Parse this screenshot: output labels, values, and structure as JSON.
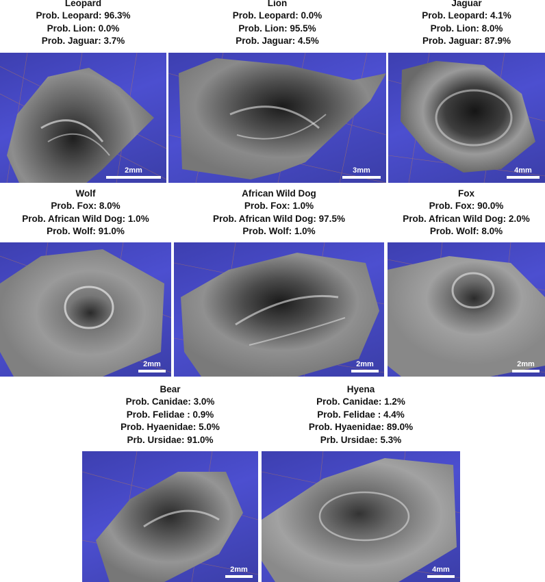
{
  "panels": [
    {
      "title": "Leopard",
      "lines": [
        "Prob. Leopard: 96.3%",
        "Prob. Lion: 0.0%",
        "Prob. Jaguar: 3.7%"
      ],
      "scale": "2mm"
    },
    {
      "title": "Lion",
      "lines": [
        "Prob. Leopard: 0.0%",
        "Prob. Lion: 95.5%",
        "Prob. Jaguar: 4.5%"
      ],
      "scale": "3mm"
    },
    {
      "title": "Jaguar",
      "lines": [
        "Prob. Leopard: 4.1%",
        "Prob. Lion: 8.0%",
        "Prob. Jaguar: 87.9%"
      ],
      "scale": "4mm"
    },
    {
      "title": "Wolf",
      "lines": [
        "Prob. Fox: 8.0%",
        "Prob. African Wild Dog: 1.0%",
        "Prob. Wolf: 91.0%"
      ],
      "scale": "2mm"
    },
    {
      "title": "African Wild Dog",
      "lines": [
        "Prob. Fox: 1.0%",
        "Prob. African Wild Dog: 97.5%",
        "Prob. Wolf: 1.0%"
      ],
      "scale": "2mm"
    },
    {
      "title": "Fox",
      "lines": [
        "Prob. Fox: 90.0%",
        "Prob. African Wild Dog: 2.0%",
        "Prob. Wolf: 8.0%"
      ],
      "scale": "2mm"
    },
    {
      "title": "Bear",
      "lines": [
        "Prob. Canidae: 3.0%",
        "Prob. Felidae : 0.9%",
        "Prob. Hyaenidae: 5.0%",
        "Prb. Ursidae: 91.0%"
      ],
      "scale": "2mm"
    },
    {
      "title": "Hyena",
      "lines": [
        "Prob. Canidae: 1.2%",
        "Prob. Felidae : 4.4%",
        "Prob. Hyaenidae: 89.0%",
        "Prb. Ursidae: 5.3%"
      ],
      "scale": "4mm"
    }
  ]
}
